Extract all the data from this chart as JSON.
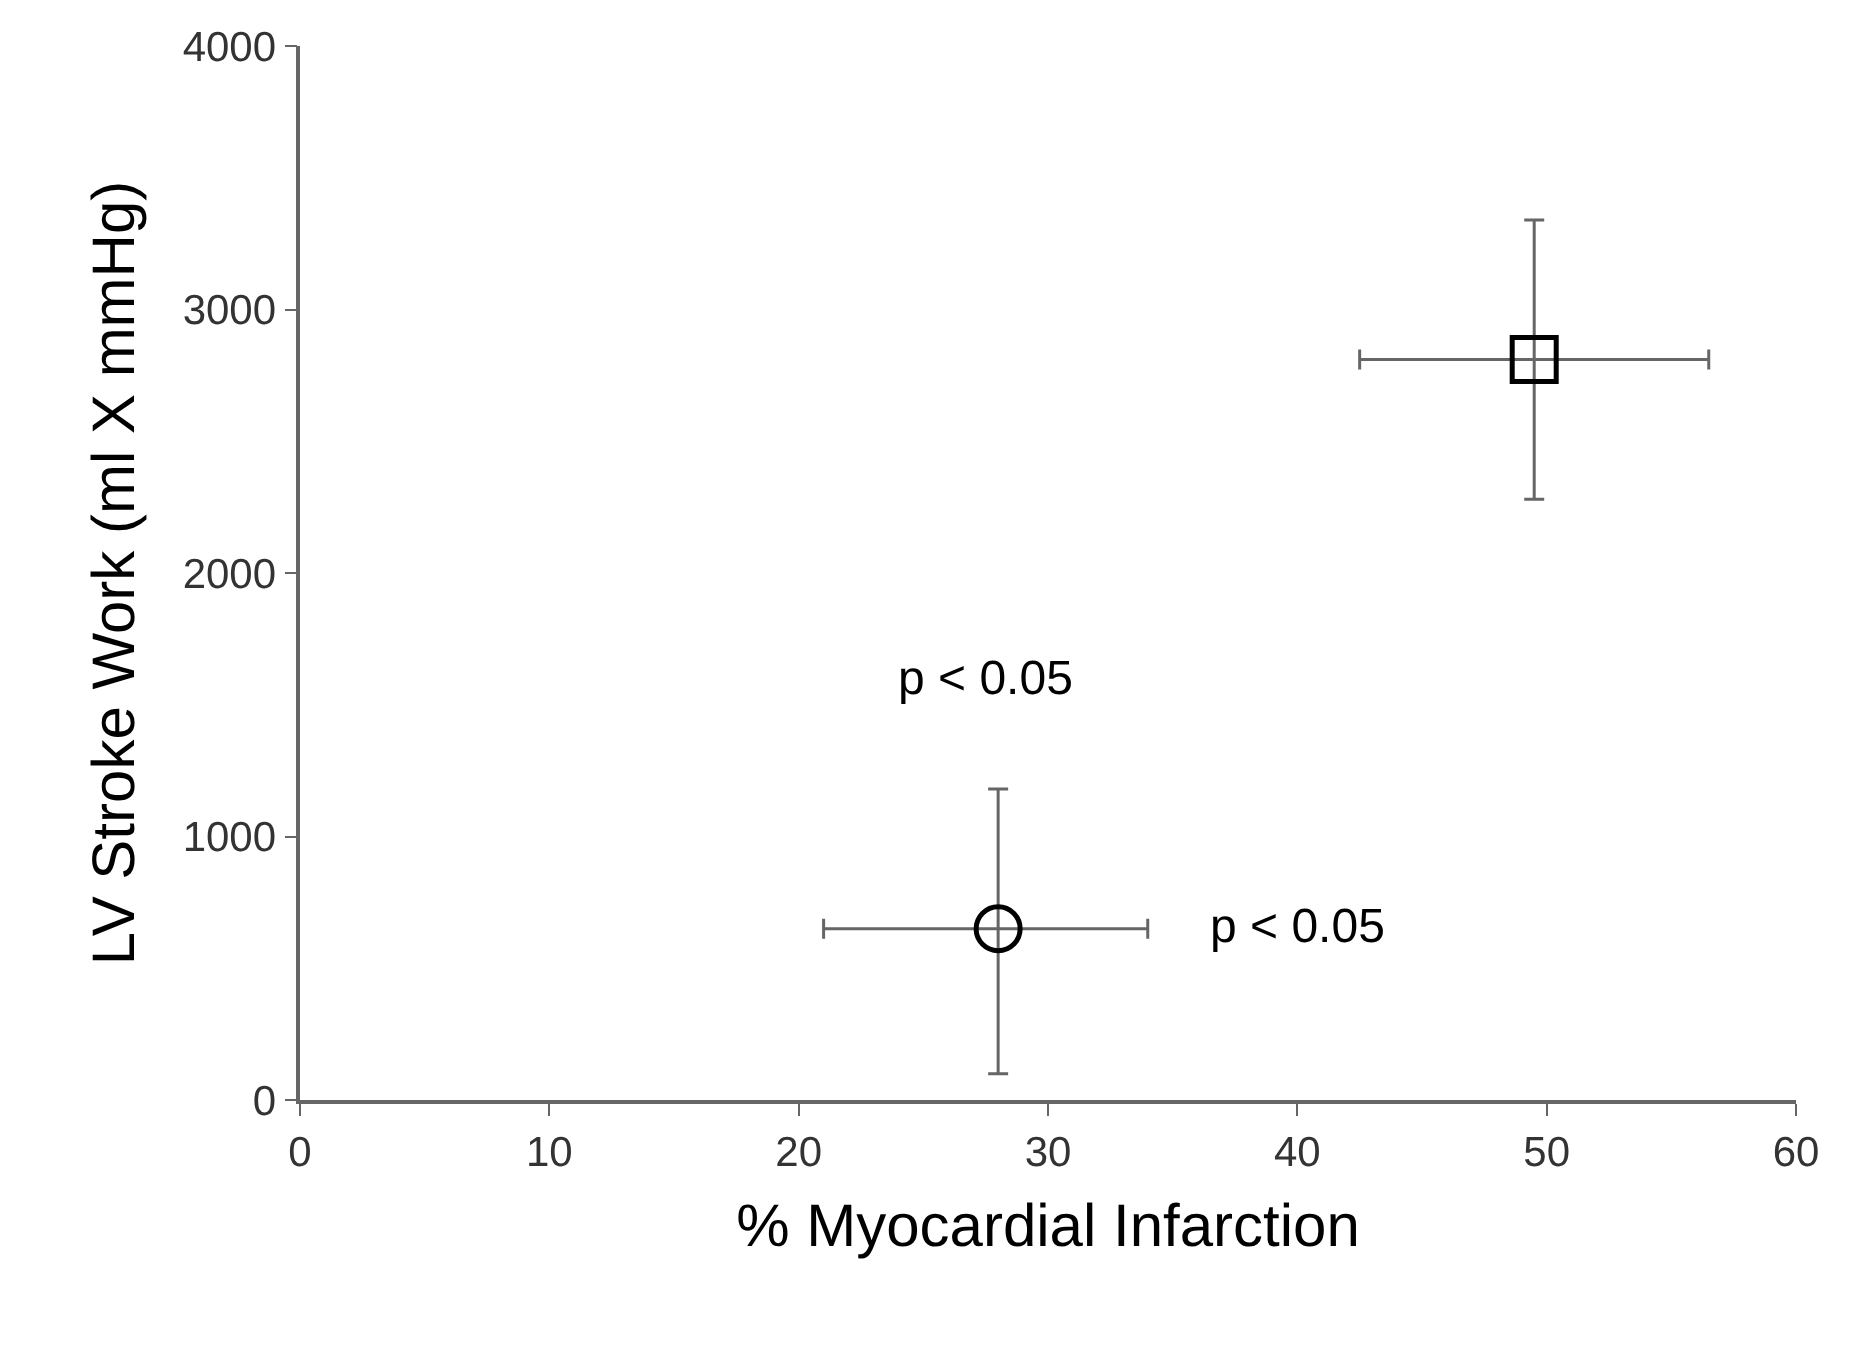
{
  "chart_data": {
    "type": "scatter",
    "xlabel": "% Myocardial Infarction",
    "ylabel": "LV Stroke Work (ml X mmHg)",
    "series": [
      {
        "x": [
          49.5
        ],
        "values": [
          2810
        ],
        "color": "#000000",
        "marker": "square",
        "errors": [
          530
        ],
        "xerrors": [
          7
        ]
      },
      {
        "x": [
          28
        ],
        "values": [
          650
        ],
        "color": "#000000",
        "marker": "circle",
        "errors": [
          [
            100,
            1180
          ]
        ],
        "xerrors": [
          [
            21,
            34
          ]
        ]
      }
    ],
    "annotations": [
      "p < 0.05",
      "p < 0.05"
    ],
    "xlim": [
      0,
      60
    ],
    "xticks": [
      0,
      10,
      20,
      30,
      40,
      50,
      60
    ],
    "ylim": [
      0,
      4000
    ],
    "yticks": [
      0,
      1000,
      2000,
      3000,
      4000
    ],
    "tick_labels": "xy"
  }
}
